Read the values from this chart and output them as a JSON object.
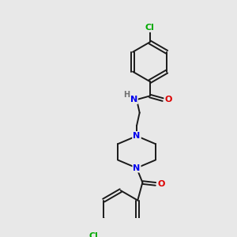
{
  "background_color": "#e8e8e8",
  "bond_color": "#1a1a1a",
  "atom_colors": {
    "N": "#0000ee",
    "O": "#dd0000",
    "Cl": "#00aa00",
    "H": "#707070",
    "C": "#1a1a1a"
  },
  "lw": 1.4,
  "fs": 8.0
}
